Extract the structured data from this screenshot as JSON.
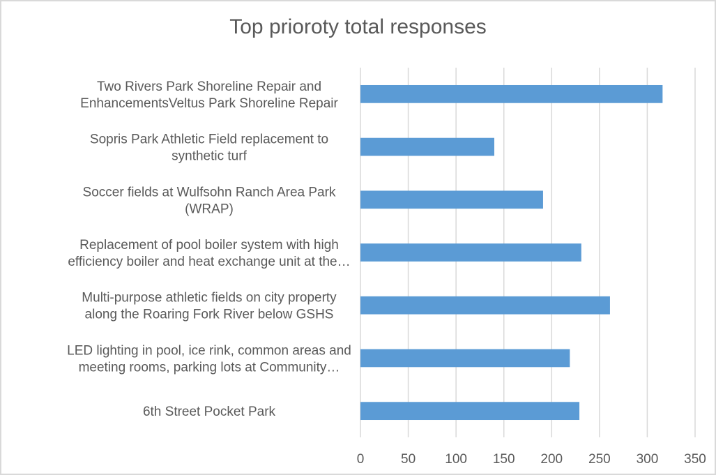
{
  "chart_data": {
    "type": "bar",
    "orientation": "horizontal",
    "title": "Top prioroty total responses",
    "xlabel": "",
    "ylabel": "",
    "categories": [
      [
        "Two Rivers Park Shoreline Repair and",
        "EnhancementsVeltus Park Shoreline Repair"
      ],
      [
        "Sopris Park Athletic Field replacement to",
        "synthetic turf"
      ],
      [
        "Soccer fields at Wulfsohn Ranch Area Park",
        "(WRAP)"
      ],
      [
        "Replacement of pool boiler system with high",
        "efficiency boiler and heat exchange unit at the…"
      ],
      [
        "Multi-purpose athletic fields on city property",
        "along the Roaring Fork River below GSHS"
      ],
      [
        "LED lighting in pool, ice rink, common areas and",
        "meeting rooms, parking lots at Community…"
      ],
      [
        "6th Street Pocket Park"
      ]
    ],
    "values": [
      316,
      140,
      191,
      231,
      261,
      219,
      229
    ],
    "xlim": [
      0,
      350
    ],
    "xticks": [
      0,
      50,
      100,
      150,
      200,
      250,
      300,
      350
    ],
    "grid": true,
    "legend": "none",
    "bar_color": "#5b9bd5",
    "grid_color": "#d9d9d9"
  }
}
